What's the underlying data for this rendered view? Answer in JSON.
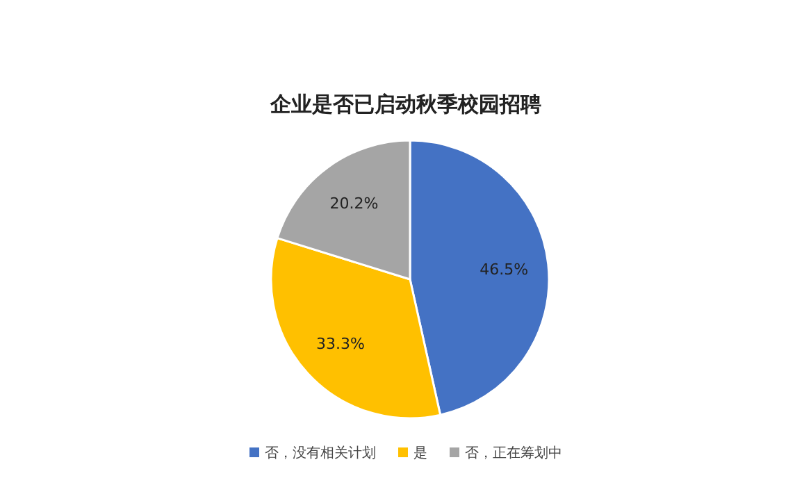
{
  "chart_data": {
    "type": "pie",
    "title": "企业是否已启动秋季校园招聘",
    "categories": [
      "否，没有相关计划",
      "是",
      "否，正在筹划中"
    ],
    "values": [
      46.5,
      33.3,
      20.2
    ],
    "colors": [
      "#4472c4",
      "#ffc000",
      "#a5a5a5"
    ],
    "value_labels": [
      "46.5%",
      "33.3%",
      "20.2%"
    ],
    "legend": "bottom"
  }
}
